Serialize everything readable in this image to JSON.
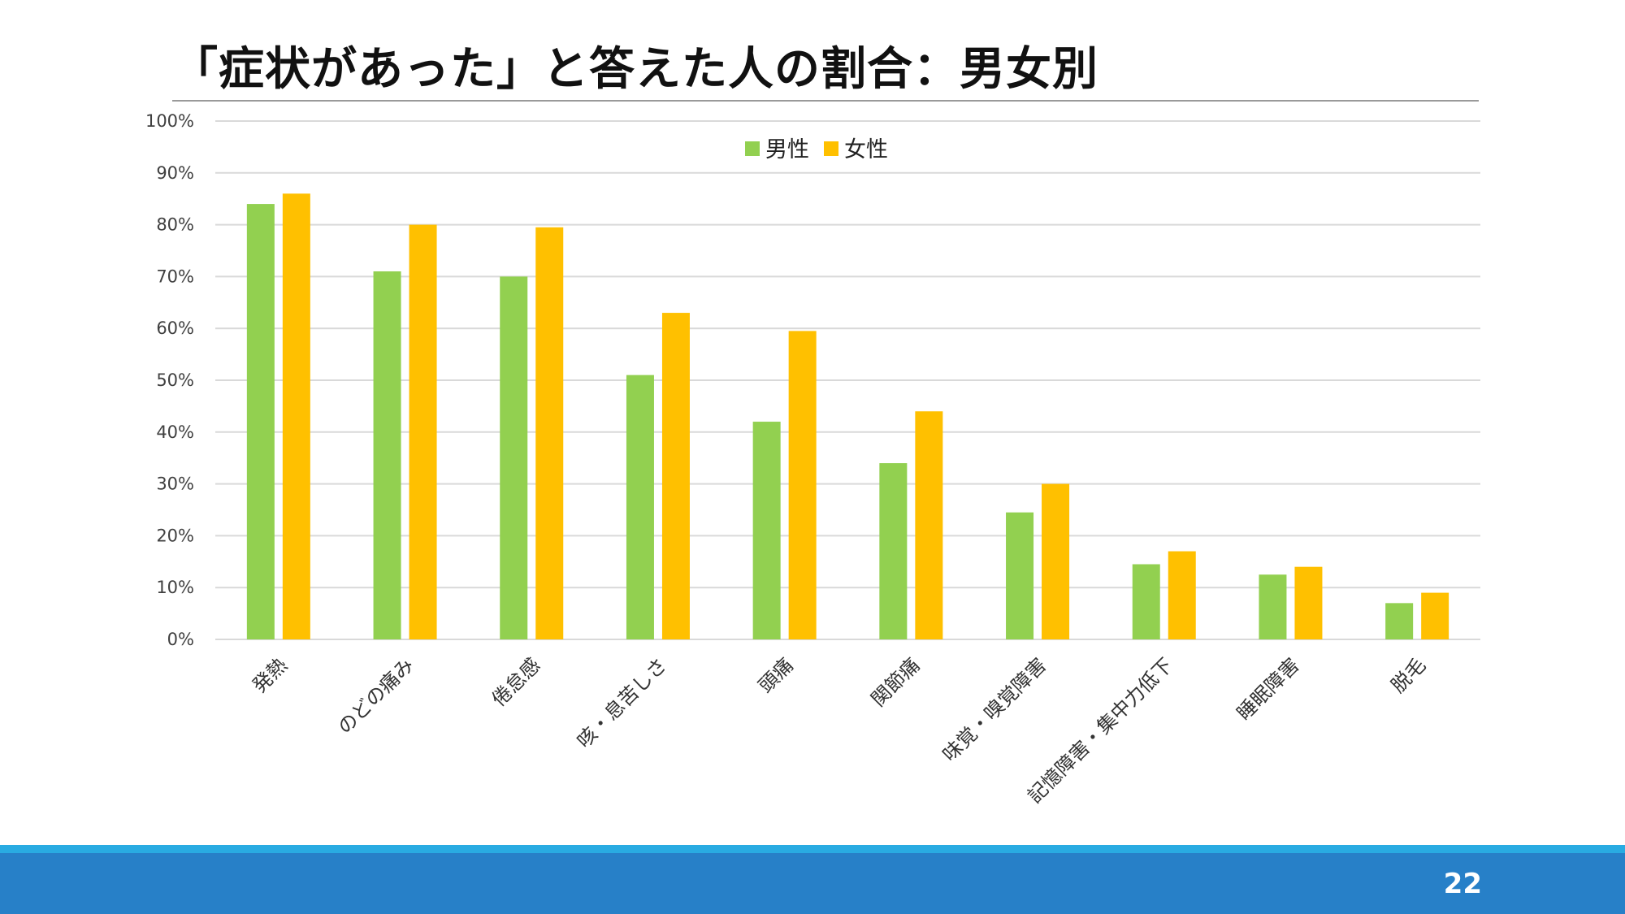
{
  "slide": {
    "title": "「症状があった」と答えた人の割合：男女別",
    "page_number": "22"
  },
  "colors": {
    "male": "#92d050",
    "female": "#ffc000",
    "grid": "#d9d9d9",
    "footer": "#2780c8",
    "footer_accent": "#29abe2"
  },
  "chart_data": {
    "type": "bar",
    "title": "",
    "xlabel": "",
    "ylabel": "",
    "ylim": [
      0,
      100
    ],
    "y_ticks": [
      "0%",
      "10%",
      "20%",
      "30%",
      "40%",
      "50%",
      "60%",
      "70%",
      "80%",
      "90%",
      "100%"
    ],
    "grid": true,
    "legend_position": "top-center",
    "categories": [
      "発熱",
      "のどの痛み",
      "倦怠感",
      "咳・息苦しさ",
      "頭痛",
      "関節痛",
      "味覚・嗅覚障害",
      "記憶障害・集中力低下",
      "睡眠障害",
      "脱毛"
    ],
    "series": [
      {
        "name": "男性",
        "values": [
          84,
          71,
          70,
          51,
          42,
          34,
          24.5,
          14.5,
          12.5,
          7
        ]
      },
      {
        "name": "女性",
        "values": [
          86,
          80,
          79.5,
          63,
          59.5,
          44,
          30,
          17,
          14,
          9
        ]
      }
    ]
  }
}
